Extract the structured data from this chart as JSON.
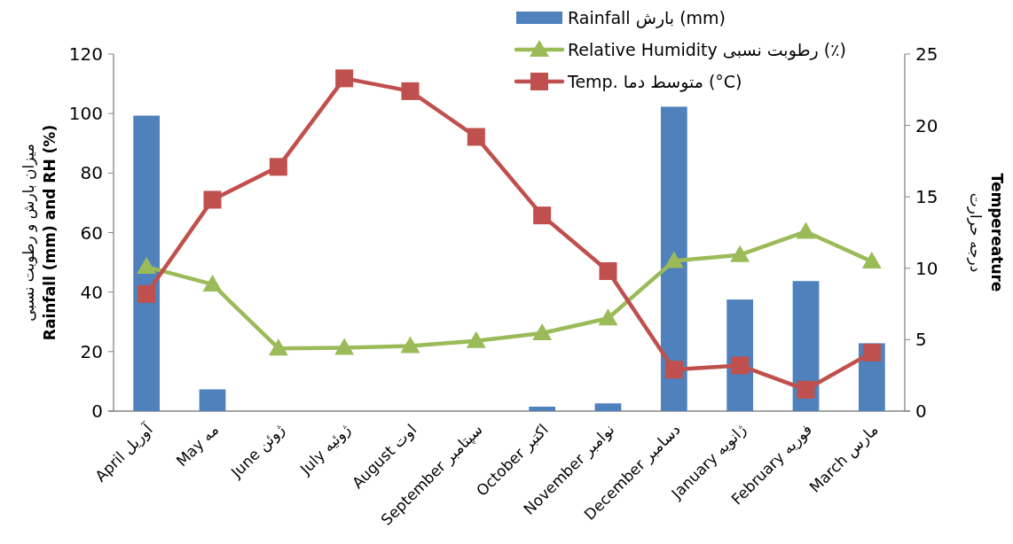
{
  "chart_data": {
    "type": "bar",
    "categories": [
      "April آوریل",
      "May مه",
      "June ژوئن",
      "July ژوئیه",
      "August اوت",
      "September سپتامبر",
      "October اکتبر",
      "November نوامبر",
      "December دسامبر",
      "January ژانویه",
      "February فوریه",
      "March مارس"
    ],
    "series": [
      {
        "name": "Rainfall بارش (mm)",
        "color": "#4f81bd",
        "values": [
          99.3,
          7.3,
          0,
          0,
          0,
          0,
          1.5,
          2.6,
          102.3,
          37.5,
          43.7,
          22.8
        ]
      },
      {
        "name": "Relative Humidity رطوبت نسبی (٪)",
        "type": "line",
        "color": "#9bbb59",
        "marker": "triangle",
        "values": [
          48.5,
          42.6,
          21.1,
          21.3,
          21.9,
          23.6,
          26.2,
          31.2,
          50.5,
          52.5,
          60.3,
          50.3
        ]
      },
      {
        "name": "Temp. متوسط دما (°C)",
        "type": "line",
        "axis": "y2",
        "color": "#c0504d",
        "marker": "square",
        "values": [
          8.2,
          14.8,
          17.1,
          23.3,
          22.4,
          19.2,
          13.7,
          9.8,
          2.9,
          3.2,
          1.5,
          4.1
        ]
      }
    ],
    "ylim": [
      0,
      120
    ],
    "yticks": [
      0,
      20,
      40,
      60,
      80,
      100,
      120
    ],
    "y2lim": [
      0,
      25
    ],
    "y2ticks": [
      0,
      5,
      10,
      15,
      20,
      25
    ],
    "ylabel": "میزان بارش و رطوبت نسبی\nRainfall (mm) and RH (%)",
    "y2label": "درجه حرارت\nTempereature",
    "legend": "top right",
    "grid": false
  }
}
